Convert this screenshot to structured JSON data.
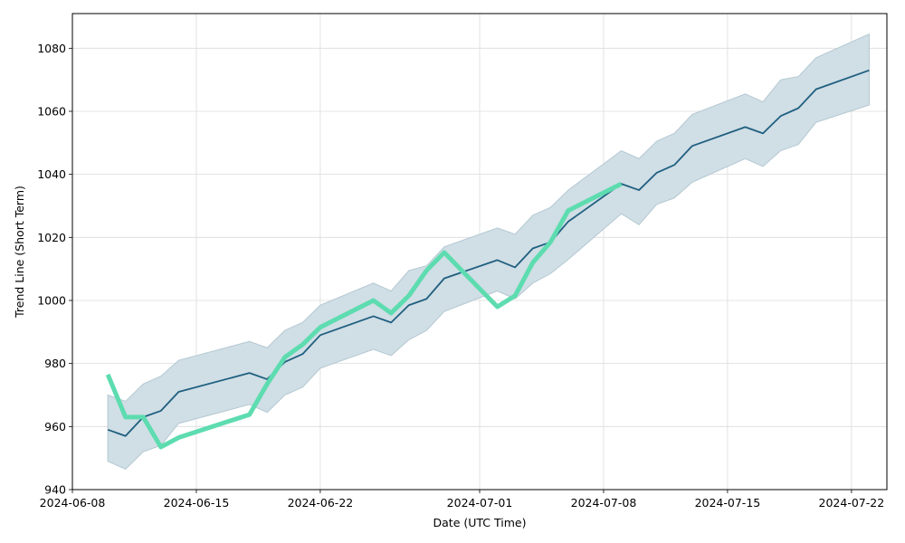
{
  "chart_data": {
    "type": "line",
    "title": "",
    "xlabel": "Date (UTC Time)",
    "ylabel": "Trend Line (Short Term)",
    "xlim": [
      "2024-06-08",
      "2024-07-24"
    ],
    "ylim": [
      940,
      1091
    ],
    "grid": true,
    "x_ticks": [
      "2024-06-08",
      "2024-06-15",
      "2024-06-22",
      "2024-07-01",
      "2024-07-08",
      "2024-07-15",
      "2024-07-22"
    ],
    "y_ticks": [
      940,
      960,
      980,
      1000,
      1020,
      1040,
      1060,
      1080
    ],
    "colors": {
      "trend_line": "#1f5f80",
      "band_fill": "#d0dee5",
      "band_edge": "#b4c8d2",
      "actual_line": "#5ddcb0",
      "grid": "#dcdcdc"
    },
    "series": [
      {
        "role": "trend",
        "points": [
          [
            "2024-06-10",
            959
          ],
          [
            "2024-06-11",
            957
          ],
          [
            "2024-06-12",
            963
          ],
          [
            "2024-06-13",
            965
          ],
          [
            "2024-06-14",
            971
          ],
          [
            "2024-06-18",
            977
          ],
          [
            "2024-06-19",
            975
          ],
          [
            "2024-06-20",
            980.5
          ],
          [
            "2024-06-21",
            983
          ],
          [
            "2024-06-22",
            989
          ],
          [
            "2024-06-25",
            995
          ],
          [
            "2024-06-26",
            993
          ],
          [
            "2024-06-27",
            998.5
          ],
          [
            "2024-06-28",
            1000.5
          ],
          [
            "2024-06-29",
            1007
          ],
          [
            "2024-07-02",
            1012.8
          ],
          [
            "2024-07-03",
            1010.5
          ],
          [
            "2024-07-04",
            1016.5
          ],
          [
            "2024-07-05",
            1018.5
          ],
          [
            "2024-07-06",
            1025
          ],
          [
            "2024-07-09",
            1037
          ],
          [
            "2024-07-10",
            1035
          ],
          [
            "2024-07-11",
            1040.5
          ],
          [
            "2024-07-12",
            1043
          ],
          [
            "2024-07-13",
            1049
          ],
          [
            "2024-07-16",
            1055
          ],
          [
            "2024-07-17",
            1053
          ],
          [
            "2024-07-18",
            1058.5
          ],
          [
            "2024-07-19",
            1061
          ],
          [
            "2024-07-20",
            1067
          ],
          [
            "2024-07-23",
            1073
          ]
        ]
      },
      {
        "role": "actual",
        "points": [
          [
            "2024-06-10",
            976.5
          ],
          [
            "2024-06-11",
            963
          ],
          [
            "2024-06-12",
            963
          ],
          [
            "2024-06-13",
            953.5
          ],
          [
            "2024-06-14",
            956.5
          ],
          [
            "2024-06-18",
            963.8
          ],
          [
            "2024-06-19",
            973.5
          ],
          [
            "2024-06-20",
            982
          ],
          [
            "2024-06-21",
            986
          ],
          [
            "2024-06-22",
            991.5
          ],
          [
            "2024-06-25",
            1000
          ],
          [
            "2024-06-26",
            996
          ],
          [
            "2024-06-27",
            1001.5
          ],
          [
            "2024-06-28",
            1009.5
          ],
          [
            "2024-06-29",
            1015.2
          ],
          [
            "2024-07-02",
            998
          ],
          [
            "2024-07-03",
            1001.5
          ],
          [
            "2024-07-04",
            1012
          ],
          [
            "2024-07-05",
            1018.5
          ],
          [
            "2024-07-06",
            1028.5
          ],
          [
            "2024-07-09",
            1037
          ]
        ]
      }
    ],
    "band": {
      "upper": [
        [
          "2024-06-10",
          970
        ],
        [
          "2024-06-11",
          968
        ],
        [
          "2024-06-12",
          973.5
        ],
        [
          "2024-06-13",
          976
        ],
        [
          "2024-06-14",
          981
        ],
        [
          "2024-06-18",
          987
        ],
        [
          "2024-06-19",
          985
        ],
        [
          "2024-06-20",
          990.5
        ],
        [
          "2024-06-21",
          993
        ],
        [
          "2024-06-22",
          998.5
        ],
        [
          "2024-06-25",
          1005.5
        ],
        [
          "2024-06-26",
          1003
        ],
        [
          "2024-06-27",
          1009.5
        ],
        [
          "2024-06-28",
          1011
        ],
        [
          "2024-06-29",
          1017
        ],
        [
          "2024-07-02",
          1023
        ],
        [
          "2024-07-03",
          1021
        ],
        [
          "2024-07-04",
          1027
        ],
        [
          "2024-07-05",
          1029.5
        ],
        [
          "2024-07-06",
          1035
        ],
        [
          "2024-07-09",
          1047.5
        ],
        [
          "2024-07-10",
          1045
        ],
        [
          "2024-07-11",
          1050.5
        ],
        [
          "2024-07-12",
          1053
        ],
        [
          "2024-07-13",
          1059
        ],
        [
          "2024-07-16",
          1065.5
        ],
        [
          "2024-07-17",
          1063
        ],
        [
          "2024-07-18",
          1070
        ],
        [
          "2024-07-19",
          1071
        ],
        [
          "2024-07-20",
          1077
        ],
        [
          "2024-07-23",
          1084.5
        ]
      ],
      "lower": [
        [
          "2024-06-10",
          949
        ],
        [
          "2024-06-11",
          946.5
        ],
        [
          "2024-06-12",
          952
        ],
        [
          "2024-06-13",
          954
        ],
        [
          "2024-06-14",
          961
        ],
        [
          "2024-06-18",
          967
        ],
        [
          "2024-06-19",
          964.5
        ],
        [
          "2024-06-20",
          970
        ],
        [
          "2024-06-21",
          972.5
        ],
        [
          "2024-06-22",
          978.5
        ],
        [
          "2024-06-25",
          984.5
        ],
        [
          "2024-06-26",
          982.5
        ],
        [
          "2024-06-27",
          987.5
        ],
        [
          "2024-06-28",
          990.5
        ],
        [
          "2024-06-29",
          996.5
        ],
        [
          "2024-07-02",
          1003
        ],
        [
          "2024-07-03",
          1000.5
        ],
        [
          "2024-07-04",
          1005.5
        ],
        [
          "2024-07-05",
          1008.5
        ],
        [
          "2024-07-06",
          1013
        ],
        [
          "2024-07-09",
          1027.5
        ],
        [
          "2024-07-10",
          1024
        ],
        [
          "2024-07-11",
          1030.5
        ],
        [
          "2024-07-12",
          1032.5
        ],
        [
          "2024-07-13",
          1037.5
        ],
        [
          "2024-07-16",
          1045
        ],
        [
          "2024-07-17",
          1042.5
        ],
        [
          "2024-07-18",
          1047.5
        ],
        [
          "2024-07-19",
          1049.5
        ],
        [
          "2024-07-20",
          1056.5
        ],
        [
          "2024-07-23",
          1062
        ]
      ]
    }
  }
}
